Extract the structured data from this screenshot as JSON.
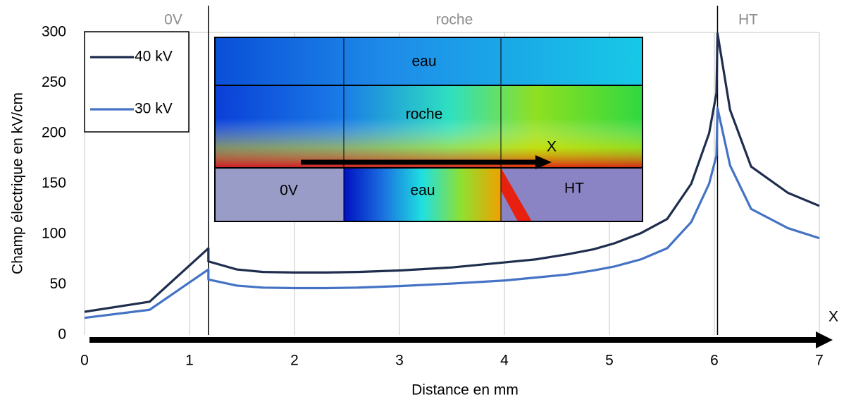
{
  "chart_data": {
    "type": "line",
    "x_label": "Distance en mm",
    "y_label": "Champ électrique en kV/cm",
    "x": [
      0,
      0.62,
      1.18,
      1.18,
      1.45,
      1.7,
      2,
      2.3,
      2.6,
      3,
      3.5,
      4,
      4.3,
      4.6,
      4.85,
      5.05,
      5.3,
      5.55,
      5.78,
      5.95,
      6.02,
      6.03,
      6.15,
      6.35,
      6.7,
      7
    ],
    "series": [
      {
        "name": "40 kV",
        "color": "#1f2d4e",
        "values": [
          23,
          33,
          86,
          73,
          65,
          62.5,
          62,
          62,
          62.5,
          64,
          67,
          72,
          75,
          80,
          85,
          91,
          101,
          115,
          150,
          200,
          240,
          299,
          223,
          167,
          141,
          128
        ]
      },
      {
        "name": "30 kV",
        "color": "#4472c4",
        "values": [
          17,
          25,
          65,
          55,
          49,
          47,
          46.5,
          46.5,
          47,
          48.5,
          51,
          54,
          57,
          60,
          64,
          68,
          75,
          86,
          112,
          150,
          178,
          225,
          168,
          125,
          106,
          96
        ]
      }
    ],
    "xlim": [
      0,
      7
    ],
    "xticks": [
      0,
      1,
      2,
      3,
      4,
      5,
      6,
      7
    ],
    "ylim": [
      0,
      300
    ],
    "yticks": [
      0,
      50,
      100,
      150,
      200,
      250,
      300
    ],
    "grid": "x",
    "legend": "top-left",
    "vlines": [
      1.18,
      6.03
    ],
    "region_labels": [
      "0V",
      "roche",
      "HT"
    ],
    "axis_arrow_label": "X",
    "inset": {
      "labels": [
        "eau",
        "roche",
        "0V",
        "eau",
        "HT"
      ],
      "arrow_label": "X"
    }
  }
}
